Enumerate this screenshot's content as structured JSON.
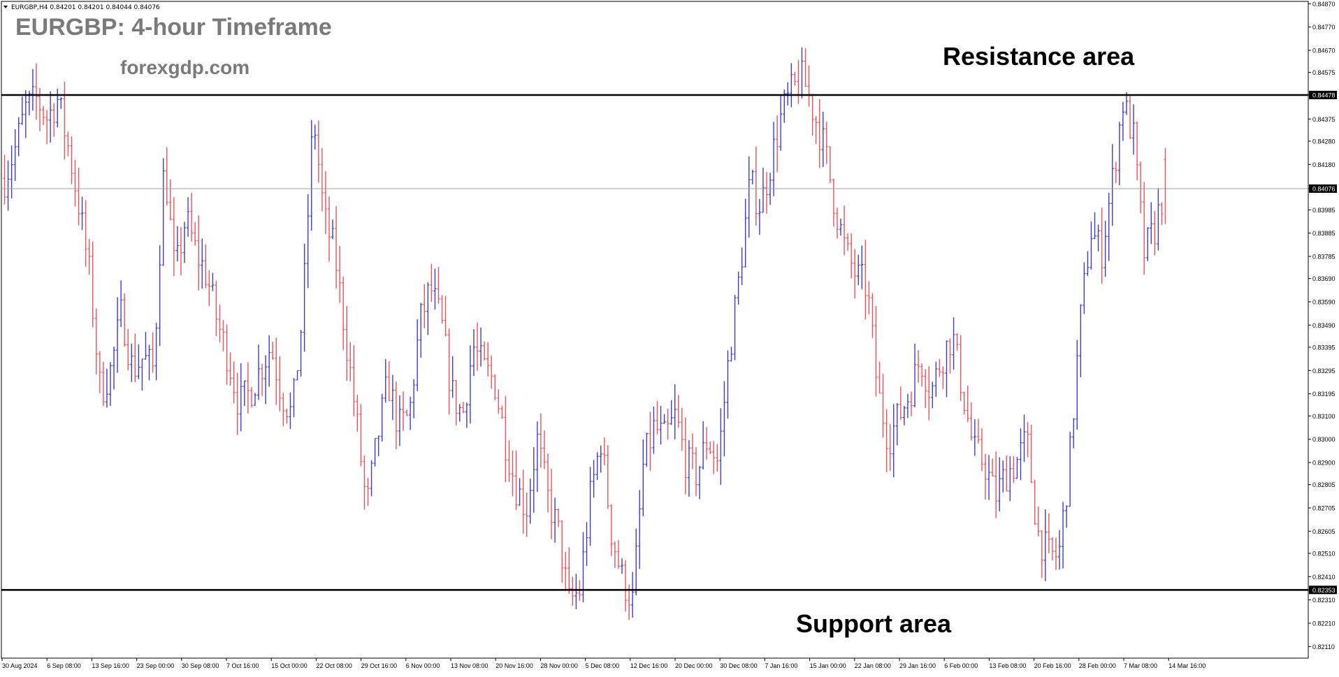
{
  "header": {
    "symbol_info": "EURGBP,H4  0.84201 0.84201 0.84044 0.84076",
    "title": "EURGBP: 4-hour Timeframe",
    "website": "forexgdp.com"
  },
  "annotations": {
    "resistance_label": "Resistance area",
    "support_label": "Support area"
  },
  "colors": {
    "up_bar": "#3b3bd6",
    "down_bar": "#f0505a",
    "level_line": "#000000",
    "current_price_line": "#a0a0a0",
    "axis_text": "#000000",
    "title_text": "#7a7a7a"
  },
  "chart_data": {
    "type": "ohlc",
    "symbol": "EURGBP",
    "timeframe": "H4",
    "ylim": [
      0.8206,
      0.8488
    ],
    "y_ticks": [
      "0.84870",
      "0.84770",
      "0.84670",
      "0.84575",
      "0.84478",
      "0.84375",
      "0.84280",
      "0.84180",
      "0.84076",
      "0.83985",
      "0.83885",
      "0.83785",
      "0.83690",
      "0.83590",
      "0.83490",
      "0.83395",
      "0.83295",
      "0.83195",
      "0.83100",
      "0.83000",
      "0.82900",
      "0.82805",
      "0.82705",
      "0.82605",
      "0.82510",
      "0.82410",
      "0.82353",
      "0.82310",
      "0.82210",
      "0.82110"
    ],
    "x_ticks": [
      "30 Aug 2024",
      "6 Sep 08:00",
      "13 Sep 16:00",
      "23 Sep 00:00",
      "30 Sep 08:00",
      "7 Oct 16:00",
      "15 Oct 00:00",
      "22 Oct 08:00",
      "29 Oct 16:00",
      "6 Nov 00:00",
      "13 Nov 08:00",
      "20 Nov 16:00",
      "28 Nov 00:00",
      "5 Dec 08:00",
      "12 Dec 16:00",
      "20 Dec 00:00",
      "30 Dec 08:00",
      "7 Jan 16:00",
      "15 Jan 00:00",
      "22 Jan 08:00",
      "29 Jan 16:00",
      "6 Feb 00:00",
      "13 Feb 08:00",
      "20 Feb 16:00",
      "28 Feb 00:00",
      "7 Mar 08:00",
      "14 Mar 16:00"
    ],
    "resistance": 0.84478,
    "support": 0.82353,
    "current_price": 0.84076,
    "last_bar": {
      "open": 0.84201,
      "high": 0.84201,
      "low": 0.84044,
      "close": 0.84076
    },
    "path_closes": [
      0.8412,
      0.8425,
      0.8442,
      0.8446,
      0.8438,
      0.8446,
      0.8425,
      0.84,
      0.837,
      0.832,
      0.833,
      0.8355,
      0.833,
      0.8335,
      0.833,
      0.842,
      0.837,
      0.8395,
      0.838,
      0.837,
      0.835,
      0.8335,
      0.8315,
      0.832,
      0.833,
      0.834,
      0.832,
      0.831,
      0.8355,
      0.844,
      0.8395,
      0.838,
      0.8345,
      0.831,
      0.827,
      0.83,
      0.8325,
      0.8305,
      0.831,
      0.835,
      0.8365,
      0.835,
      0.832,
      0.831,
      0.834,
      0.833,
      0.8325,
      0.83,
      0.828,
      0.827,
      0.83,
      0.8275,
      0.826,
      0.823,
      0.8235,
      0.8275,
      0.83,
      0.826,
      0.824,
      0.823,
      0.829,
      0.8305,
      0.83,
      0.831,
      0.829,
      0.8285,
      0.83,
      0.829,
      0.8335,
      0.837,
      0.841,
      0.84,
      0.842,
      0.844,
      0.845,
      0.8455,
      0.844,
      0.8425,
      0.84,
      0.838,
      0.837,
      0.8365,
      0.832,
      0.83,
      0.831,
      0.832,
      0.8335,
      0.832,
      0.8335,
      0.8345,
      0.832,
      0.8295,
      0.829,
      0.8275,
      0.8285,
      0.829,
      0.83,
      0.826,
      0.825,
      0.825,
      0.829,
      0.835,
      0.839,
      0.838,
      0.841,
      0.8445,
      0.843,
      0.838,
      0.839,
      0.841
    ],
    "bar_count": 330
  }
}
